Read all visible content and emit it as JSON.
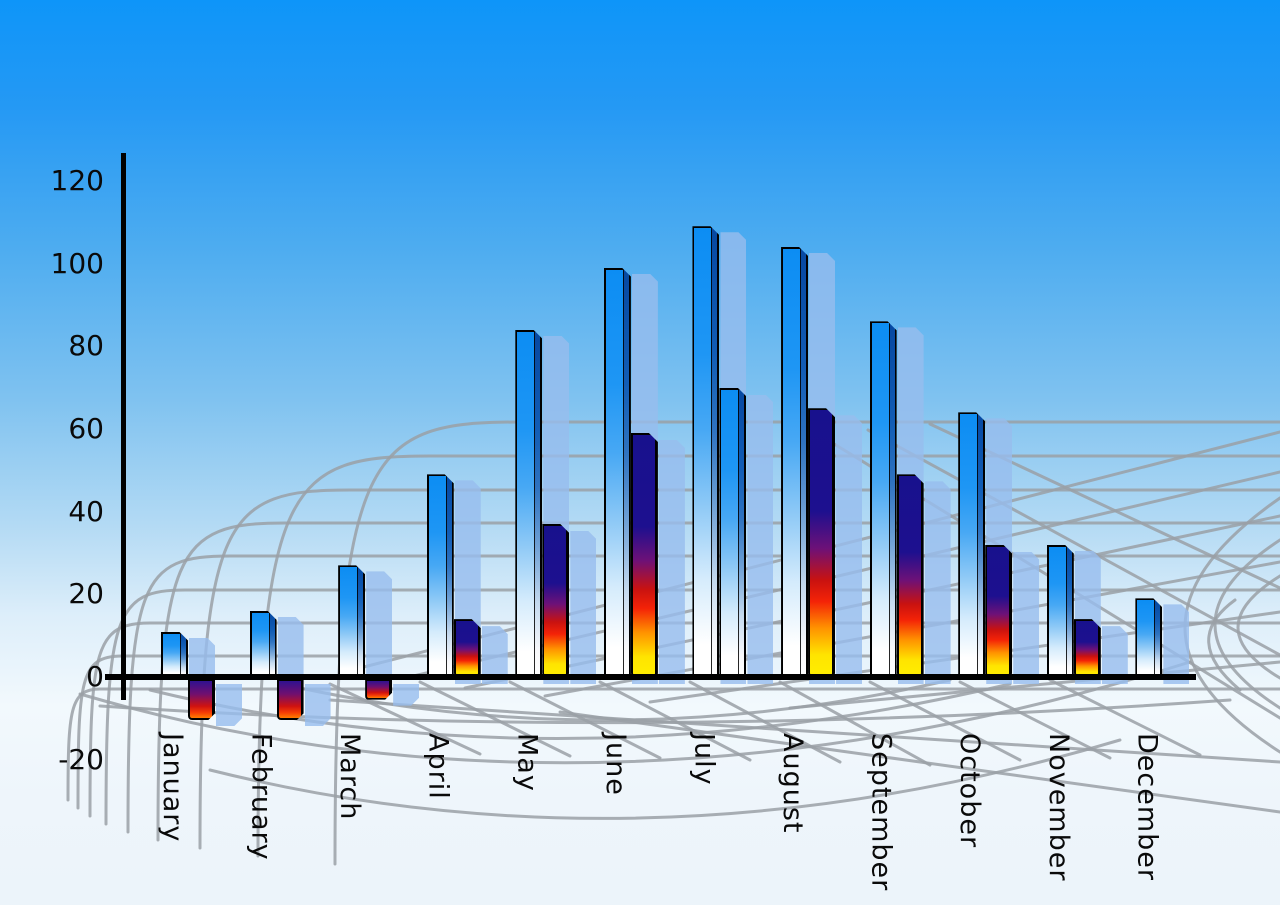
{
  "chart_data": {
    "type": "bar",
    "title": "",
    "xlabel": "",
    "ylabel": "",
    "categories": [
      "January",
      "February",
      "March",
      "April",
      "May",
      "June",
      "July",
      "August",
      "September",
      "October",
      "November",
      "December"
    ],
    "series": [
      {
        "name": "series-1-blue-gradient",
        "values": [
          11,
          16,
          27,
          49,
          84,
          99,
          109,
          104,
          86,
          64,
          32,
          19
        ]
      },
      {
        "name": "series-2-multicolor",
        "values": [
          -10,
          -10,
          -5,
          14,
          37,
          59,
          70,
          65,
          49,
          32,
          14,
          null
        ]
      }
    ],
    "series2_style": [
      "neg",
      "neg",
      "neg",
      "hot",
      "hot",
      "hot",
      "blue",
      "hot",
      "hot",
      "hot",
      "hot",
      null
    ],
    "ylim": [
      -20,
      120
    ],
    "y_ticks": [
      120,
      100,
      80,
      60,
      40,
      20,
      0,
      -20
    ],
    "legend_position": "none",
    "grid": "gray perspective web behind bars",
    "x_tick_rotation_deg": 90
  },
  "colors": {
    "sky_top": "#0e95f9",
    "sky_bottom": "#ecf4fa",
    "bar_blue_top": "#0c8df3",
    "bar_blue_bottom": "#ffffff",
    "bar_hot_navy": "#18118d",
    "bar_hot_red": "#e81410",
    "bar_hot_yellow": "#ffee00",
    "bar_neg_orange": "#ff7d00",
    "shadow_bar": "rgba(151,189,238,0.8)",
    "grid_line": "#9aa0a6",
    "axis_line": "#000000",
    "tick_label": "#0a0a0a"
  }
}
